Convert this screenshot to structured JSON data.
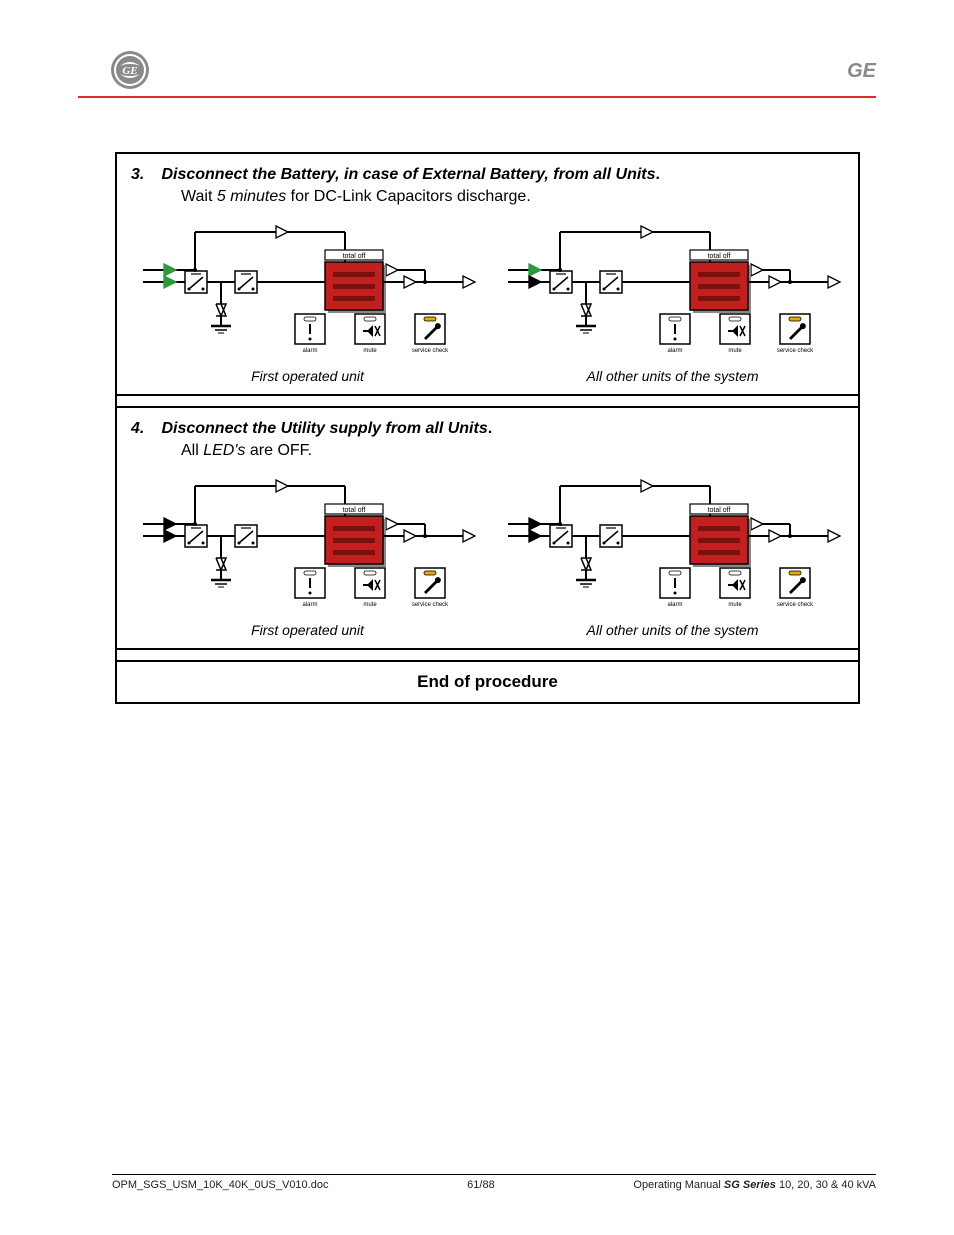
{
  "header": {
    "brand": "GE"
  },
  "steps": [
    {
      "num": "3.",
      "title": "Disconnect the Battery, in case of External Battery, from all Units",
      "title_trailing": ".",
      "sub_prefix": "Wait ",
      "sub_italic": "5 minutes",
      "sub_suffix": " for DC-Link Capacitors discharge.",
      "unit_a_arrow_colors": [
        "#2b9a3a",
        "#2b9a3a"
      ],
      "unit_b_arrow_colors": [
        "#2b9a3a",
        "#000000"
      ],
      "caption_a": "First operated unit",
      "caption_b": "All other units of the system"
    },
    {
      "num": "4.",
      "title": "Disconnect the Utility supply from all Units",
      "title_trailing": ".",
      "sub_prefix": "All ",
      "sub_italic": "LED's",
      "sub_suffix": " are OFF.",
      "unit_a_arrow_colors": [
        "#000000",
        "#000000"
      ],
      "unit_b_arrow_colors": [
        "#000000",
        "#000000"
      ],
      "caption_a": "First operated unit",
      "caption_b": "All other units of the system"
    }
  ],
  "end_label": "End of procedure",
  "diagram_common": {
    "panel_color": "#c41f1f",
    "panel_shadow": "#888888",
    "panel_label": "total off",
    "button_labels": [
      "alarm",
      "mute",
      "service check"
    ],
    "led_amber": "#e8a80a",
    "line_color": "#000000",
    "bg": "#ffffff"
  },
  "footer": {
    "left": "OPM_SGS_USM_10K_40K_0US_V010.doc",
    "center": "61/88",
    "right_prefix": "Operating Manual ",
    "right_bold": "SG Series",
    "right_suffix": " 10, 20, 30 & 40 kVA"
  }
}
